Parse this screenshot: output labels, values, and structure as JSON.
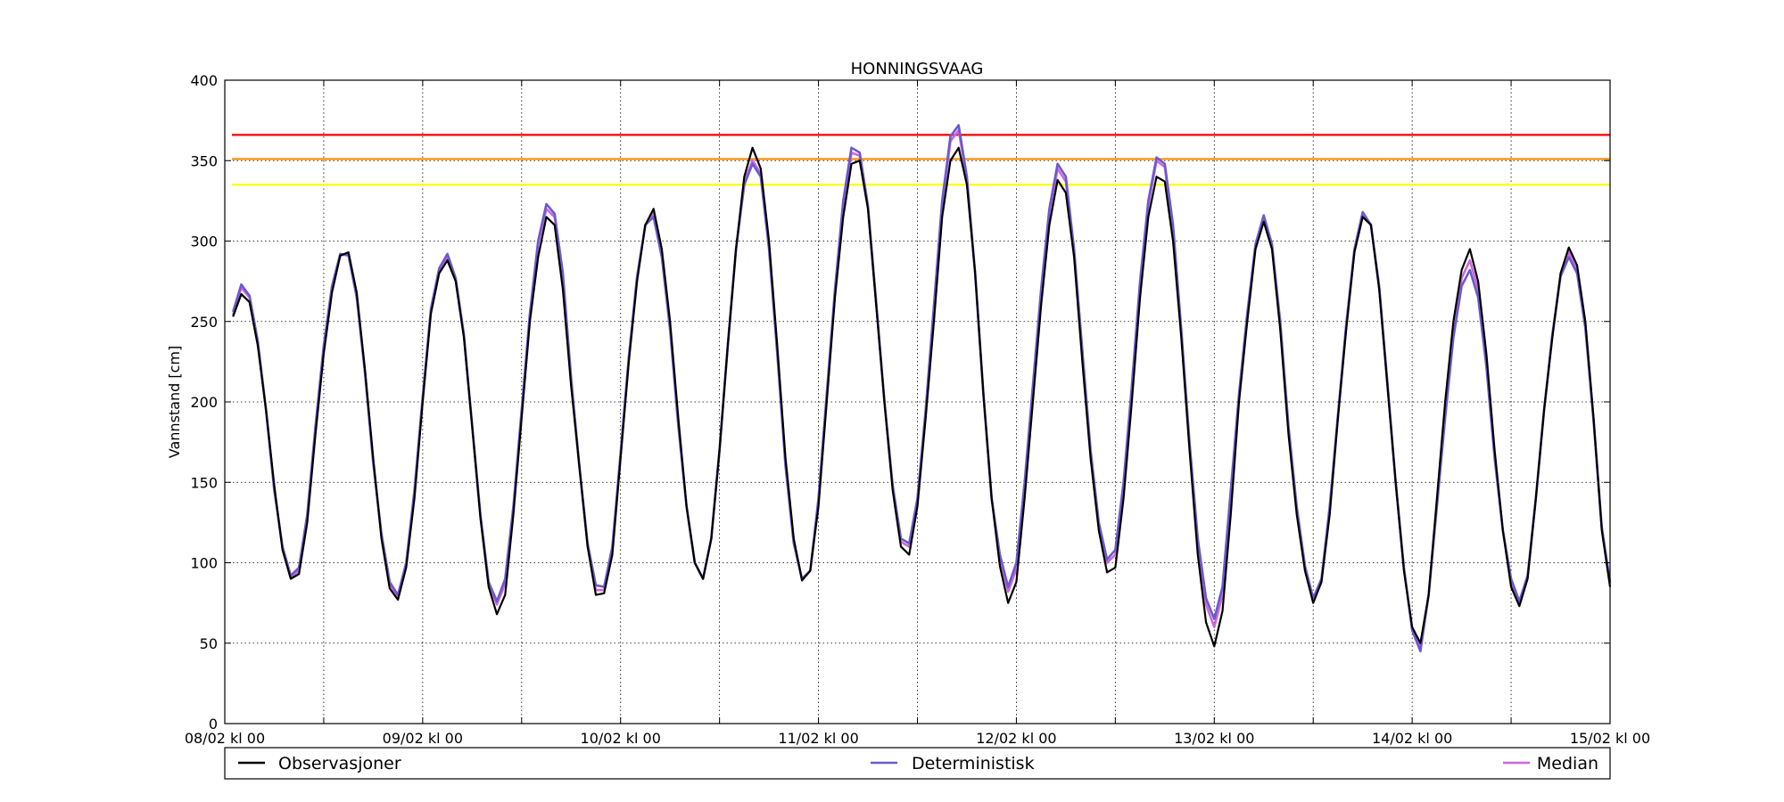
{
  "chart_data": {
    "type": "line",
    "title": "HONNINGSVAAG",
    "xlabel": "",
    "ylabel": "Vannstand [cm]",
    "ylim": [
      0,
      400
    ],
    "yticks": [
      0,
      50,
      100,
      150,
      200,
      250,
      300,
      350,
      400
    ],
    "xlim_hours": [
      0,
      168
    ],
    "xticks": [
      {
        "h": 0,
        "label": "08/02 kl 00"
      },
      {
        "h": 12,
        "label": ""
      },
      {
        "h": 24,
        "label": "09/02 kl 00"
      },
      {
        "h": 36,
        "label": ""
      },
      {
        "h": 48,
        "label": "10/02 kl 00"
      },
      {
        "h": 60,
        "label": ""
      },
      {
        "h": 72,
        "label": "11/02 kl 00"
      },
      {
        "h": 84,
        "label": ""
      },
      {
        "h": 96,
        "label": "12/02 kl 00"
      },
      {
        "h": 108,
        "label": ""
      },
      {
        "h": 120,
        "label": "13/02 kl 00"
      },
      {
        "h": 132,
        "label": ""
      },
      {
        "h": 144,
        "label": "14/02 kl 00"
      },
      {
        "h": 156,
        "label": ""
      },
      {
        "h": 168,
        "label": "15/02 kl 00"
      }
    ],
    "grid": true,
    "legend_position": "bottom",
    "thresholds": [
      {
        "value": 366,
        "color": "#ff0000"
      },
      {
        "value": 351,
        "color": "#ff8c00"
      },
      {
        "value": 335,
        "color": "#ffff00"
      }
    ],
    "series": [
      {
        "name": "Observasjoner",
        "color": "#000000",
        "x_start_hour": 1,
        "step_hours": 1,
        "values": [
          253,
          267,
          262,
          235,
          195,
          148,
          108,
          90,
          93,
          125,
          180,
          230,
          268,
          291,
          293,
          268,
          220,
          165,
          115,
          84,
          77,
          97,
          140,
          200,
          255,
          280,
          288,
          275,
          240,
          185,
          128,
          85,
          68,
          80,
          130,
          190,
          250,
          290,
          315,
          310,
          270,
          210,
          160,
          110,
          80,
          81,
          105,
          165,
          225,
          275,
          310,
          320,
          295,
          250,
          190,
          135,
          100,
          90,
          115,
          170,
          235,
          295,
          340,
          358,
          345,
          300,
          235,
          165,
          115,
          89,
          95,
          135,
          200,
          265,
          315,
          348,
          350,
          320,
          260,
          200,
          145,
          110,
          105,
          135,
          190,
          250,
          315,
          350,
          358,
          335,
          280,
          205,
          140,
          98,
          75,
          88,
          140,
          200,
          260,
          310,
          338,
          330,
          290,
          225,
          165,
          120,
          94,
          97,
          140,
          200,
          265,
          315,
          340,
          337,
          300,
          240,
          170,
          105,
          63,
          48,
          70,
          130,
          200,
          250,
          295,
          312,
          295,
          245,
          180,
          130,
          95,
          75,
          88,
          130,
          190,
          245,
          293,
          315,
          310,
          270,
          210,
          150,
          95,
          60,
          50,
          80,
          140,
          200,
          250,
          282,
          295,
          275,
          230,
          170,
          120,
          85,
          73,
          90,
          140,
          195,
          240,
          280,
          296,
          285,
          250,
          190,
          120,
          85
        ]
      },
      {
        "name": "Deterministisk",
        "color": "#6a5acd",
        "x_start_hour": 1,
        "step_hours": 1,
        "values": [
          256,
          273,
          266,
          238,
          195,
          145,
          110,
          92,
          97,
          130,
          185,
          235,
          272,
          292,
          291,
          265,
          218,
          162,
          118,
          88,
          80,
          100,
          145,
          203,
          258,
          283,
          292,
          277,
          242,
          185,
          130,
          88,
          76,
          90,
          135,
          195,
          255,
          300,
          323,
          317,
          280,
          215,
          160,
          112,
          86,
          85,
          110,
          168,
          228,
          278,
          310,
          315,
          290,
          245,
          185,
          135,
          100,
          90,
          115,
          170,
          235,
          295,
          335,
          348,
          340,
          295,
          230,
          160,
          112,
          90,
          95,
          140,
          205,
          270,
          325,
          358,
          355,
          322,
          262,
          200,
          148,
          115,
          112,
          140,
          195,
          260,
          325,
          365,
          372,
          340,
          280,
          205,
          140,
          105,
          85,
          100,
          150,
          210,
          270,
          320,
          348,
          340,
          295,
          232,
          170,
          125,
          102,
          108,
          150,
          210,
          275,
          325,
          352,
          348,
          310,
          245,
          175,
          115,
          78,
          65,
          85,
          145,
          205,
          255,
          298,
          316,
          298,
          250,
          185,
          135,
          98,
          78,
          90,
          135,
          192,
          248,
          295,
          318,
          310,
          272,
          212,
          150,
          97,
          58,
          45,
          80,
          135,
          190,
          240,
          272,
          282,
          265,
          222,
          165,
          120,
          90,
          76,
          92,
          140,
          195,
          242,
          278,
          290,
          280,
          246,
          188,
          122,
          88
        ]
      },
      {
        "name": "Median",
        "color": "#cc66dd",
        "x_start_hour": 1,
        "step_hours": 1,
        "values": [
          254,
          271,
          265,
          237,
          195,
          146,
          109,
          91,
          95,
          128,
          183,
          233,
          270,
          291,
          292,
          266,
          219,
          163,
          117,
          86,
          79,
          99,
          143,
          202,
          257,
          282,
          290,
          276,
          241,
          185,
          129,
          87,
          74,
          87,
          133,
          193,
          253,
          298,
          320,
          315,
          278,
          213,
          160,
          111,
          83,
          83,
          108,
          167,
          227,
          277,
          310,
          317,
          292,
          247,
          187,
          135,
          100,
          90,
          115,
          170,
          235,
          295,
          337,
          350,
          342,
          297,
          232,
          162,
          113,
          90,
          95,
          138,
          203,
          268,
          322,
          355,
          353,
          321,
          261,
          200,
          147,
          113,
          110,
          138,
          193,
          257,
          322,
          362,
          369,
          338,
          280,
          205,
          140,
          103,
          82,
          96,
          147,
          207,
          267,
          317,
          345,
          337,
          293,
          230,
          168,
          123,
          100,
          105,
          147,
          207,
          272,
          322,
          350,
          346,
          307,
          243,
          173,
          112,
          74,
          60,
          80,
          140,
          203,
          253,
          297,
          314,
          297,
          248,
          183,
          133,
          97,
          77,
          89,
          133,
          191,
          247,
          294,
          317,
          310,
          271,
          211,
          150,
          96,
          59,
          47,
          80,
          137,
          195,
          245,
          277,
          288,
          270,
          226,
          167,
          120,
          88,
          75,
          91,
          140,
          195,
          241,
          279,
          293,
          282,
          248,
          189,
          121,
          87
        ]
      }
    ]
  }
}
